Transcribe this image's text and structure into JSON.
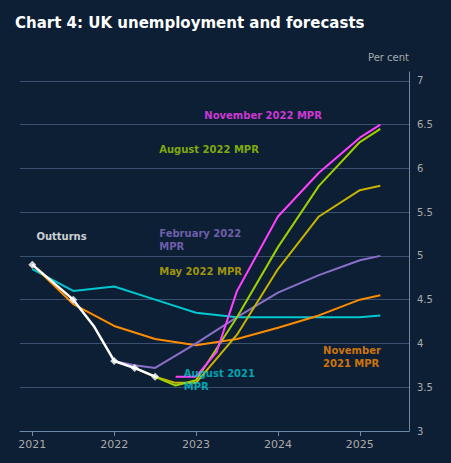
{
  "chart_data": {
    "type": "line",
    "title": "Chart 4: UK unemployment and forecasts",
    "ylabel": "Per cent",
    "xlim": [
      2020.85,
      2025.6
    ],
    "xticks": [
      2021,
      2022,
      2023,
      2024,
      2025
    ],
    "ylim": [
      3,
      7.1
    ],
    "yticks": [
      3,
      3.5,
      4,
      4.5,
      5,
      5.5,
      6,
      6.5,
      7
    ],
    "grid": true,
    "series": [
      {
        "name": "Outturns",
        "color": "#ffffff",
        "marker": "diamond",
        "x": [
          2021.0,
          2021.25,
          2021.5,
          2021.75,
          2022.0,
          2022.25,
          2022.5
        ],
        "values": [
          4.9,
          4.7,
          4.5,
          4.2,
          3.8,
          3.72,
          3.62
        ],
        "markers": {
          "x": [
            2021.0,
            2021.5,
            2022.0,
            2022.25,
            2022.5
          ],
          "values": [
            4.9,
            4.5,
            3.8,
            3.72,
            3.62
          ]
        }
      },
      {
        "name": "August 2021\nMPR",
        "color": "#00c8d0",
        "x": [
          2021.0,
          2021.5,
          2022.0,
          2022.5,
          2023.0,
          2023.5,
          2024.0,
          2024.5,
          2025.0,
          2025.25
        ],
        "values": [
          4.85,
          4.6,
          4.65,
          4.5,
          4.35,
          4.3,
          4.3,
          4.3,
          4.3,
          4.32
        ]
      },
      {
        "name": "November\n2021 MPR",
        "color": "#ff8c00",
        "x": [
          2021.0,
          2021.5,
          2022.0,
          2022.5,
          2023.0,
          2023.5,
          2024.0,
          2024.5,
          2025.0,
          2025.25
        ],
        "values": [
          4.9,
          4.45,
          4.2,
          4.05,
          3.98,
          4.05,
          4.18,
          4.32,
          4.5,
          4.55
        ]
      },
      {
        "name": "February 2022\nMPR",
        "color": "#8a6fca",
        "x": [
          2022.0,
          2022.25,
          2022.5,
          2023.0,
          2023.5,
          2024.0,
          2024.5,
          2025.0,
          2025.25
        ],
        "values": [
          3.8,
          3.75,
          3.72,
          4.0,
          4.3,
          4.58,
          4.78,
          4.95,
          5.0
        ]
      },
      {
        "name": "May 2022 MPR",
        "color": "#c8b400",
        "x": [
          2022.25,
          2022.5,
          2022.75,
          2023.0,
          2023.5,
          2024.0,
          2024.5,
          2025.0,
          2025.25
        ],
        "values": [
          3.72,
          3.62,
          3.55,
          3.55,
          4.1,
          4.85,
          5.45,
          5.75,
          5.8
        ]
      },
      {
        "name": "August 2022 MPR",
        "color": "#a0d000",
        "x": [
          2022.5,
          2022.75,
          2023.0,
          2023.5,
          2024.0,
          2024.5,
          2025.0,
          2025.25
        ],
        "values": [
          3.62,
          3.52,
          3.58,
          4.3,
          5.1,
          5.8,
          6.3,
          6.45
        ]
      },
      {
        "name": "November 2022 MPR",
        "color": "#ff40ff",
        "x": [
          2022.75,
          2023.0,
          2023.25,
          2023.5,
          2024.0,
          2024.5,
          2025.0,
          2025.25
        ],
        "values": [
          3.62,
          3.62,
          3.9,
          4.6,
          5.45,
          5.95,
          6.35,
          6.5
        ]
      }
    ],
    "annotations": [
      {
        "text": "Outturns",
        "x": 2021.05,
        "y": 5.22,
        "color": "#ffffff"
      },
      {
        "text": "August 2021\nMPR",
        "x": 2022.85,
        "y": 3.58,
        "color": "#00c8d0"
      },
      {
        "text": "November\n2021 MPR",
        "x": 2024.55,
        "y": 3.85,
        "color": "#ff8c00"
      },
      {
        "text": "February 2022\nMPR",
        "x": 2022.55,
        "y": 5.18,
        "color": "#8a6fca"
      },
      {
        "text": "May 2022 MPR",
        "x": 2022.55,
        "y": 4.82,
        "color": "#c8b400"
      },
      {
        "text": "August 2022 MPR",
        "x": 2022.55,
        "y": 6.22,
        "color": "#a0d000"
      },
      {
        "text": "November 2022 MPR",
        "x": 2023.1,
        "y": 6.6,
        "color": "#ff40ff"
      }
    ]
  }
}
